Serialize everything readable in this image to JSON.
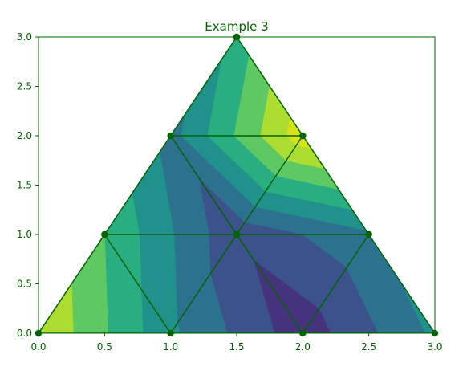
{
  "chart_data": {
    "type": "tricontourf",
    "title": "Example 3",
    "xlabel": "",
    "ylabel": "",
    "xlim": [
      0,
      3
    ],
    "ylim": [
      0,
      3
    ],
    "xticks": [
      "0.0",
      "0.5",
      "1.0",
      "1.5",
      "2.0",
      "2.5",
      "3.0"
    ],
    "yticks": [
      "0.0",
      "0.5",
      "1.0",
      "1.5",
      "2.0",
      "2.5",
      "3.0"
    ],
    "grid": false,
    "nodes": [
      {
        "x": 0.0,
        "y": 0.0,
        "v": 3.5
      },
      {
        "x": 1.0,
        "y": 0.0,
        "v": 1.6
      },
      {
        "x": 2.0,
        "y": 0.0,
        "v": 0.2
      },
      {
        "x": 3.0,
        "y": 0.0,
        "v": 1.6
      },
      {
        "x": 0.5,
        "y": 1.0,
        "v": 2.5
      },
      {
        "x": 1.5,
        "y": 1.0,
        "v": 0.6
      },
      {
        "x": 2.5,
        "y": 1.0,
        "v": 1.4
      },
      {
        "x": 1.0,
        "y": 2.0,
        "v": 1.3
      },
      {
        "x": 2.0,
        "y": 2.0,
        "v": 3.8
      },
      {
        "x": 1.5,
        "y": 3.0,
        "v": 2.2
      }
    ],
    "triangles": [
      [
        0,
        1,
        4
      ],
      [
        1,
        5,
        4
      ],
      [
        1,
        2,
        5
      ],
      [
        2,
        6,
        5
      ],
      [
        2,
        3,
        6
      ],
      [
        4,
        5,
        7
      ],
      [
        5,
        8,
        7
      ],
      [
        5,
        6,
        8
      ],
      [
        7,
        8,
        9
      ]
    ],
    "levels": [
      0,
      0.5,
      1.0,
      1.5,
      2.0,
      2.5,
      3.0,
      3.5,
      4.0
    ],
    "level_colors": [
      "#46337e",
      "#3b528b",
      "#2c728e",
      "#21918c",
      "#28ae80",
      "#5ec962",
      "#addc30",
      "#d8e219"
    ],
    "mesh_color": "#006400",
    "axis_color": "#006400"
  }
}
